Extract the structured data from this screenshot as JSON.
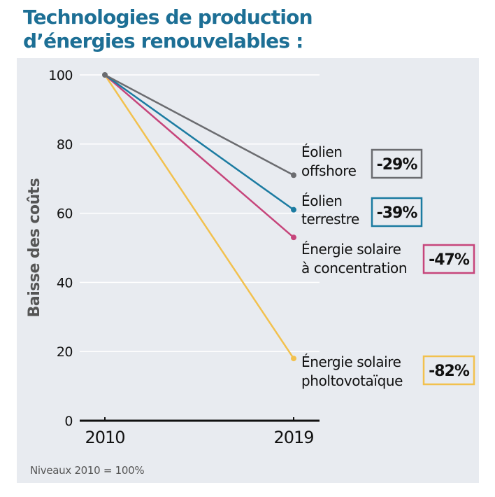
{
  "title_line1": "Technologies de production",
  "title_line2": "d’énergies renouvelables :",
  "footnote": "Niveaux 2010 = 100%",
  "chart_data": {
    "type": "line",
    "title": "Technologies de production d’énergies renouvelables :",
    "xlabel": "",
    "ylabel": "Baisse des coûts",
    "x": [
      "2010",
      "2019"
    ],
    "ylim": [
      0,
      100
    ],
    "yticks": [
      "0",
      "20",
      "40",
      "60",
      "80",
      "100"
    ],
    "grid": true,
    "series": [
      {
        "name_line1": "Éolien",
        "name_line2": "offshore",
        "values": [
          100,
          71
        ],
        "change": "-29%",
        "color": "#6b6c70"
      },
      {
        "name_line1": "Éolien",
        "name_line2": "terrestre",
        "values": [
          100,
          61
        ],
        "change": "-39%",
        "color": "#1b7ba1"
      },
      {
        "name_line1": "Énergie solaire",
        "name_line2": "à concentration",
        "values": [
          100,
          53
        ],
        "change": "-47%",
        "color": "#c6457b"
      },
      {
        "name_line1": "Énergie solaire",
        "name_line2": "pholtovotaïque",
        "values": [
          100,
          18
        ],
        "change": "-82%",
        "color": "#f2c14e"
      }
    ]
  }
}
